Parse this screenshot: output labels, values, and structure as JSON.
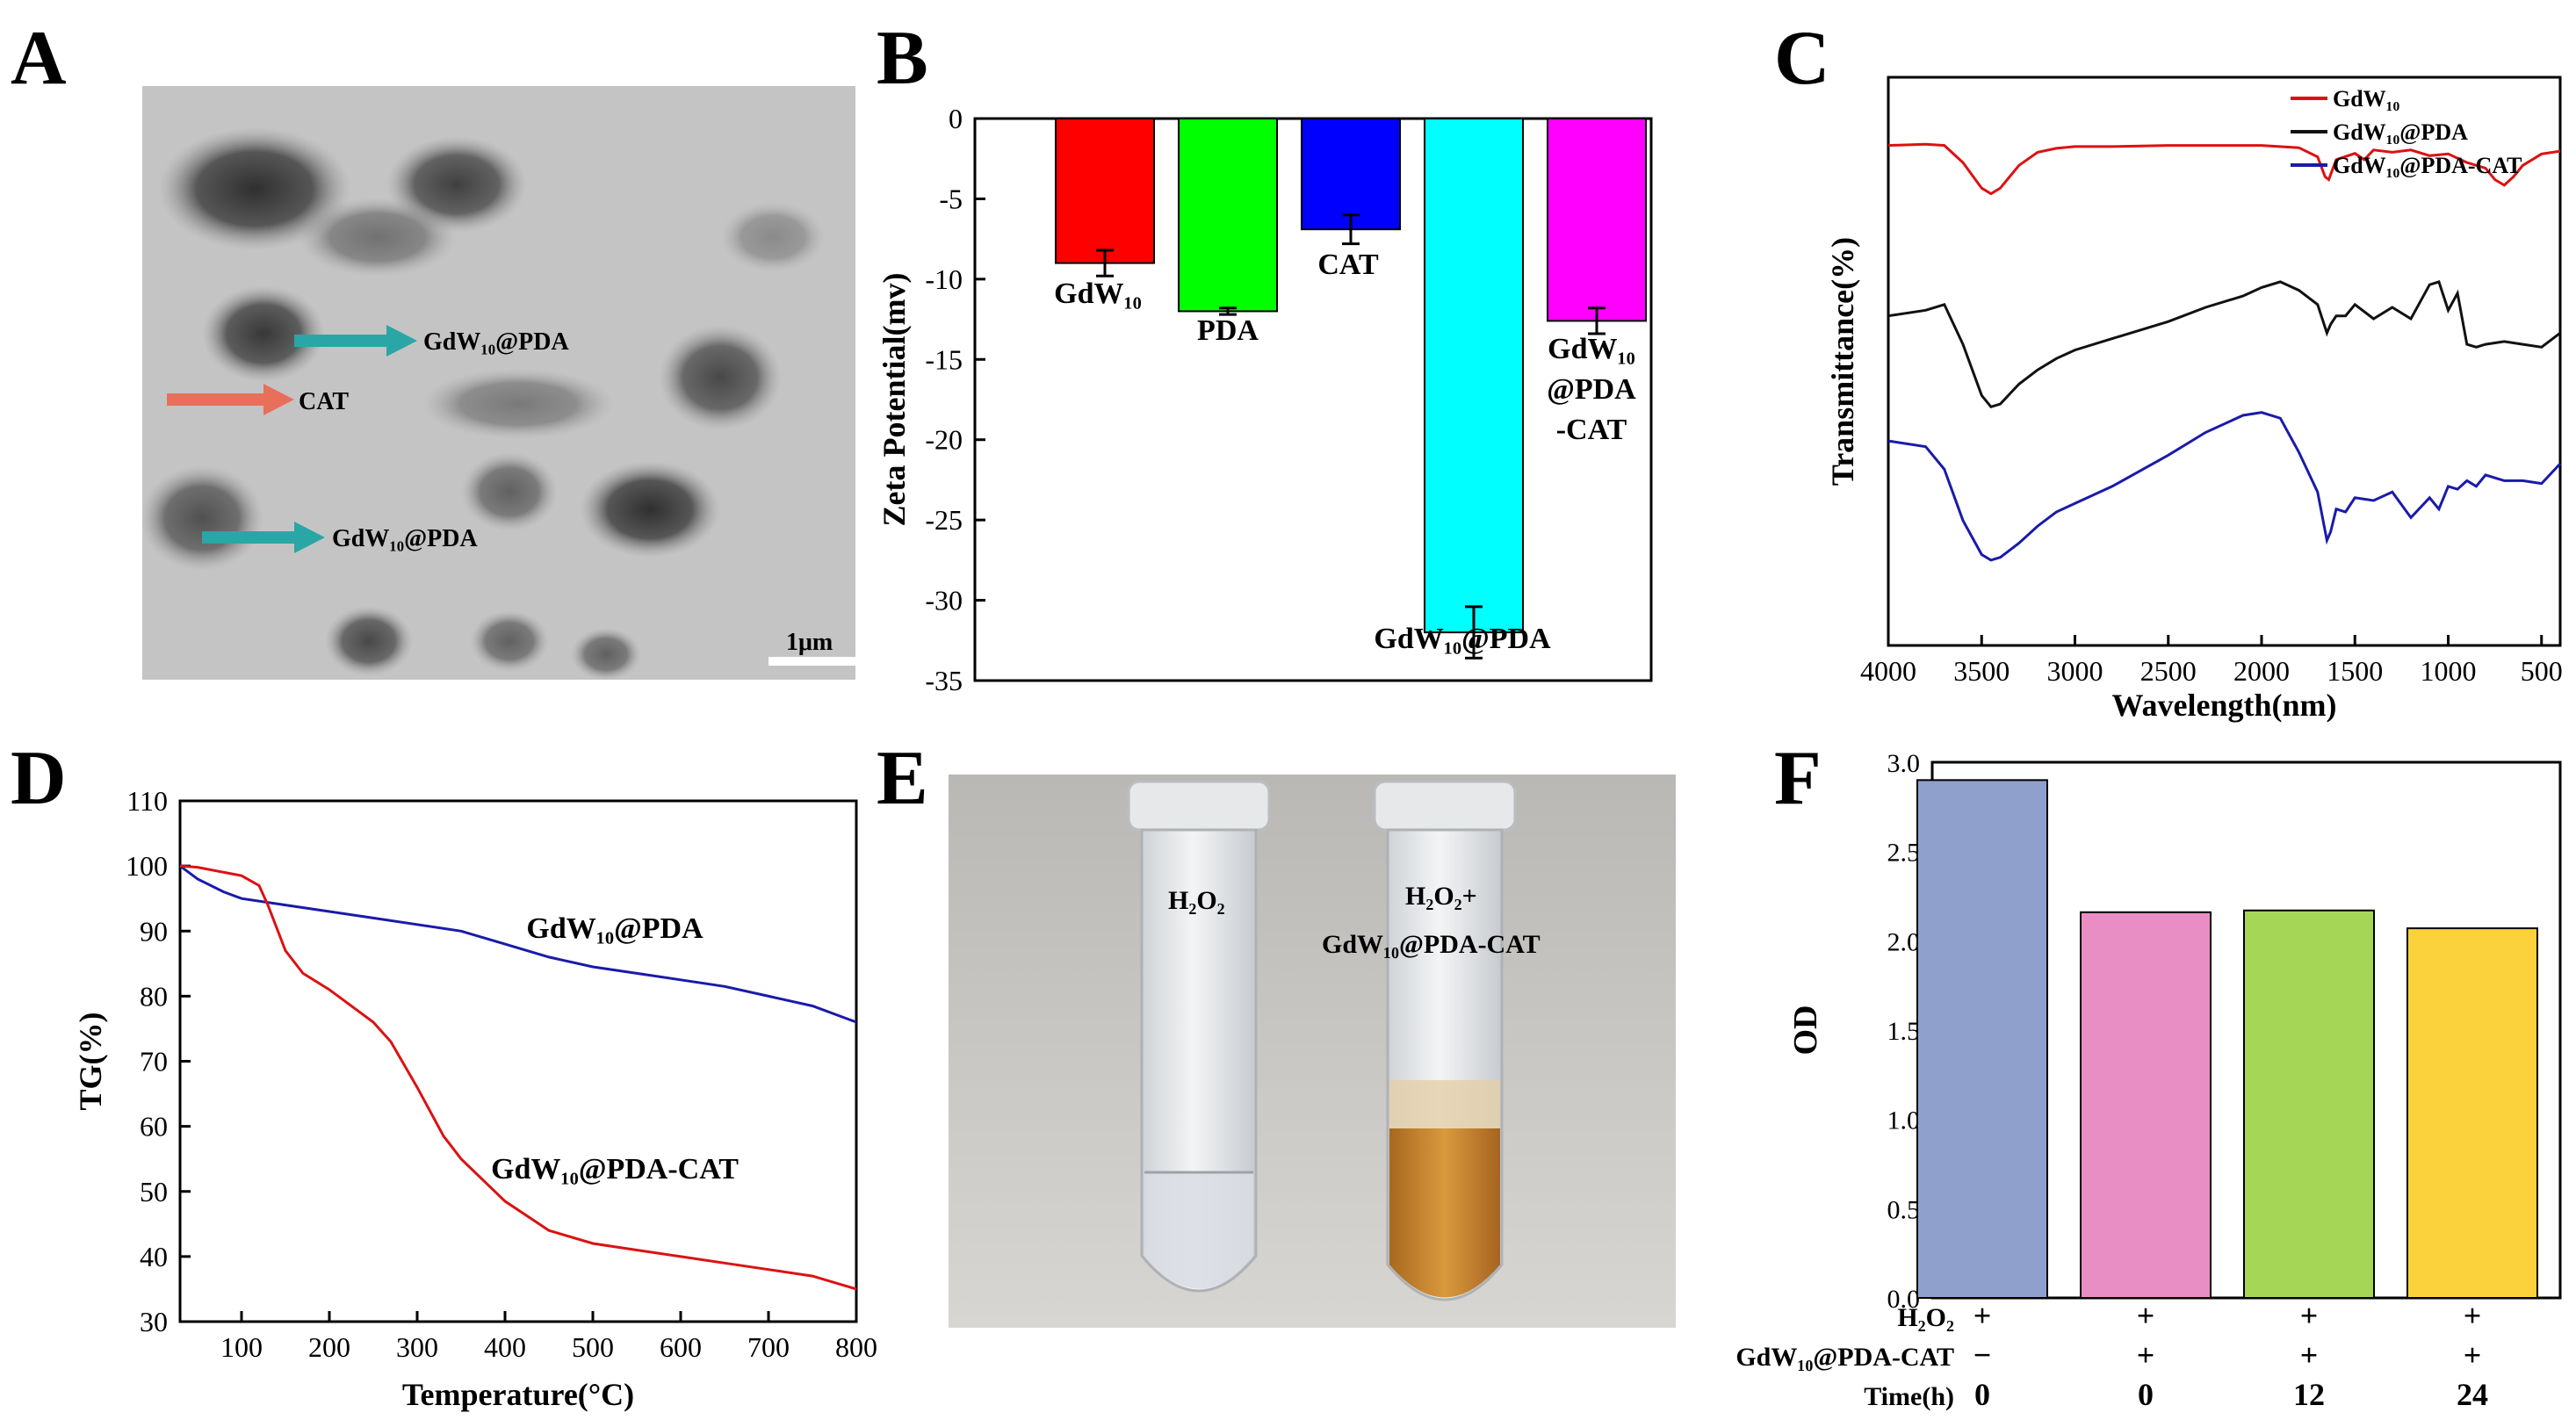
{
  "panel_letters": [
    "A",
    "B",
    "C",
    "D",
    "E",
    "F"
  ],
  "panel_a": {
    "labels": [
      {
        "text": "GdW₁₀@PDA"
      },
      {
        "text": "CAT"
      },
      {
        "text": "GdW₁₀@PDA"
      }
    ],
    "scale_bar": "1μm",
    "arrow_colors": {
      "teal": "#2aa6a6",
      "salmon": "#e8705a"
    }
  },
  "panel_e": {
    "tube1_label": "H₂O₂",
    "tube2_label_line1": "H₂O₂+",
    "tube2_label_line2": "GdW₁₀@PDA-CAT",
    "liquid_colors": {
      "tube1": "#d9dde3",
      "tube2": "#c9872e"
    }
  },
  "chart_data": [
    {
      "panel": "B",
      "type": "bar",
      "ylabel": "Zeta Potential(mv)",
      "ylim": [
        -35,
        0
      ],
      "yticks": [
        0,
        -5,
        -10,
        -15,
        -20,
        -25,
        -30,
        -35
      ],
      "categories": [
        "GdW10",
        "PDA",
        "CAT",
        "GdW10@PDA",
        "GdW10@PDA-CAT"
      ],
      "category_labels": [
        [
          "GdW₁₀"
        ],
        [
          "PDA"
        ],
        [
          "CAT"
        ],
        [
          "GdW₁₀@PDA"
        ],
        [
          "GdW₁₀",
          "@PDA",
          "-CAT"
        ]
      ],
      "values": [
        -9.0,
        -12.0,
        -6.9,
        -32.0,
        -12.6
      ],
      "errors": [
        0.8,
        0.2,
        0.9,
        1.6,
        0.8
      ],
      "colors": [
        "#ff0000",
        "#00ff00",
        "#0000ff",
        "#00ffff",
        "#ff00ff"
      ]
    },
    {
      "panel": "C",
      "type": "line",
      "xlabel": "Wavelength(nm)",
      "ylabel": "Transmittance(%)",
      "xlim": [
        4000,
        400
      ],
      "xticks": [
        4000,
        3500,
        3000,
        2500,
        2000,
        1500,
        1000,
        500
      ],
      "legend_position": "top-right",
      "series": [
        {
          "name": "GdW₁₀",
          "color": "#dd1111",
          "x": [
            4000,
            3800,
            3700,
            3600,
            3500,
            3450,
            3400,
            3300,
            3200,
            3100,
            3000,
            2800,
            2500,
            2200,
            2000,
            1800,
            1700,
            1660,
            1640,
            1600,
            1500,
            1450,
            1400,
            1300,
            1200,
            1100,
            1000,
            900,
            800,
            750,
            700,
            650,
            600,
            500,
            400
          ],
          "y": [
            88.0,
            88.2,
            88.0,
            85.0,
            80.5,
            79.5,
            80.5,
            84.5,
            86.8,
            87.5,
            87.8,
            87.8,
            88.0,
            88.0,
            88.0,
            87.6,
            86.0,
            82.5,
            82.0,
            85.5,
            86.6,
            85.5,
            87.2,
            86.8,
            87.2,
            86.2,
            86.5,
            85.0,
            84.0,
            82.0,
            81.0,
            82.5,
            84.5,
            86.5,
            87.0
          ]
        },
        {
          "name": "GdW₁₀@PDA",
          "color": "#111111",
          "x": [
            4000,
            3800,
            3700,
            3600,
            3500,
            3450,
            3400,
            3300,
            3200,
            3100,
            3000,
            2800,
            2500,
            2300,
            2100,
            2000,
            1900,
            1800,
            1700,
            1650,
            1630,
            1600,
            1550,
            1500,
            1400,
            1300,
            1200,
            1100,
            1050,
            1000,
            950,
            900,
            850,
            800,
            700,
            600,
            500,
            400
          ],
          "y": [
            58.0,
            59.0,
            60.0,
            53.0,
            44.0,
            42.0,
            42.5,
            46.0,
            48.5,
            50.5,
            52.0,
            54.0,
            57.0,
            59.5,
            61.5,
            63.0,
            64.0,
            62.5,
            60.0,
            55.0,
            56.5,
            58.0,
            58.0,
            60.0,
            57.5,
            59.5,
            57.5,
            63.5,
            64.0,
            59.0,
            62.0,
            53.0,
            52.5,
            53.0,
            53.5,
            53.0,
            52.5,
            55.0
          ]
        },
        {
          "name": "GdW₁₀@PDA-CAT",
          "color": "#1a1aaa",
          "x": [
            4000,
            3800,
            3700,
            3600,
            3500,
            3450,
            3400,
            3300,
            3200,
            3100,
            3000,
            2800,
            2500,
            2300,
            2100,
            2000,
            1900,
            1800,
            1700,
            1650,
            1630,
            1600,
            1550,
            1500,
            1400,
            1300,
            1200,
            1100,
            1050,
            1000,
            950,
            900,
            850,
            800,
            700,
            600,
            500,
            400
          ],
          "y": [
            36.0,
            35.0,
            31.0,
            22.0,
            16.0,
            15.0,
            15.5,
            18.0,
            21.0,
            23.5,
            25.0,
            28.0,
            33.5,
            37.5,
            40.5,
            41.0,
            40.0,
            34.0,
            27.0,
            18.5,
            20.0,
            24.0,
            23.5,
            26.0,
            25.5,
            27.0,
            22.5,
            26.0,
            24.0,
            28.0,
            27.5,
            29.0,
            28.0,
            30.0,
            29.0,
            29.0,
            28.5,
            32.0
          ]
        }
      ]
    },
    {
      "panel": "D",
      "type": "line",
      "xlabel": "Temperature(°C)",
      "ylabel": "TG(%)",
      "xlim": [
        30,
        800
      ],
      "ylim": [
        30,
        110
      ],
      "xticks": [
        100,
        200,
        300,
        400,
        500,
        600,
        700,
        800
      ],
      "yticks": [
        30,
        40,
        50,
        60,
        70,
        80,
        90,
        100,
        110
      ],
      "series": [
        {
          "name": "GdW₁₀@PDA",
          "color": "#1a1aaa",
          "x": [
            30,
            50,
            80,
            100,
            150,
            200,
            250,
            300,
            350,
            400,
            450,
            500,
            550,
            600,
            650,
            700,
            750,
            800
          ],
          "y": [
            100,
            98,
            96,
            95,
            94,
            93,
            92,
            91,
            90,
            88,
            86,
            84.5,
            83.5,
            82.5,
            81.5,
            80.0,
            78.5,
            76.0
          ]
        },
        {
          "name": "GdW₁₀@PDA-CAT",
          "color": "#dd1111",
          "x": [
            30,
            50,
            100,
            120,
            130,
            150,
            170,
            200,
            230,
            250,
            270,
            300,
            330,
            350,
            400,
            450,
            500,
            550,
            600,
            650,
            700,
            750,
            800
          ],
          "y": [
            100,
            99.8,
            98.5,
            97,
            94,
            87,
            83.5,
            81,
            78,
            76,
            73,
            66,
            58.5,
            55,
            48.5,
            44,
            42,
            41,
            40,
            39,
            38,
            37,
            35
          ]
        }
      ]
    },
    {
      "panel": "F",
      "type": "bar",
      "ylabel": "OD",
      "ylim": [
        0,
        3.0
      ],
      "yticks": [
        0.0,
        0.5,
        1.0,
        1.5,
        2.0,
        2.5,
        3.0
      ],
      "values": [
        2.9,
        2.16,
        2.17,
        2.07
      ],
      "colors": [
        "#8fa0cc",
        "#e98ec4",
        "#a6d655",
        "#fbd23c"
      ],
      "condition_rows": [
        {
          "label": "H₂O₂",
          "values": [
            "+",
            "+",
            "+",
            "+"
          ]
        },
        {
          "label": "GdW₁₀@PDA-CAT",
          "values": [
            "−",
            "+",
            "+",
            "+"
          ]
        },
        {
          "label": "Time(h)",
          "values": [
            "0",
            "0",
            "12",
            "24"
          ]
        }
      ]
    }
  ]
}
